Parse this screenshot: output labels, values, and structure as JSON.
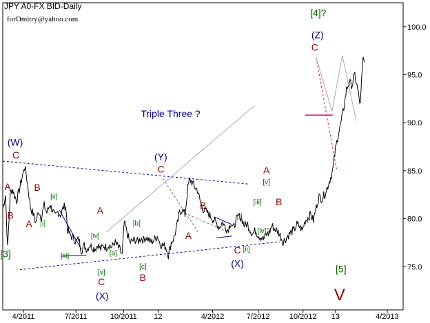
{
  "header": {
    "title": "JPY A0-FX BID-Daily",
    "email": "forDmitry@yahoo.com"
  },
  "chart_data": {
    "type": "line",
    "title": "JPY A0-FX BID-Daily",
    "xlabel": "",
    "ylabel": "",
    "grid": false,
    "legend": "none",
    "ylim": [
      70.5,
      102.5
    ],
    "y_ticks": [
      75.0,
      80.0,
      85.0,
      90.0,
      95.0,
      100.0
    ],
    "x_ticks": [
      "4/2011",
      "7/2011",
      "10/2011",
      "12",
      "4/2012",
      "7/2012",
      "10/2012",
      "13",
      "4/2013"
    ],
    "x_tick_t": [
      30,
      106,
      175,
      225,
      304,
      370,
      435,
      482,
      557
    ],
    "price": {
      "color": "#000000",
      "t": [
        0,
        4,
        7,
        9,
        11,
        14,
        17,
        20,
        24,
        28,
        32,
        36,
        40,
        44,
        48,
        52,
        56,
        60,
        64,
        68,
        72,
        76,
        80,
        84,
        88,
        91,
        94,
        98,
        102,
        106,
        110,
        114,
        118,
        122,
        126,
        130,
        134,
        138,
        142,
        146,
        150,
        154,
        158,
        162,
        166,
        170,
        173,
        176,
        180,
        184,
        188,
        192,
        196,
        200,
        204,
        208,
        212,
        216,
        220,
        224,
        228,
        232,
        236,
        240,
        244,
        248,
        252,
        256,
        260,
        264,
        268,
        271,
        274,
        278,
        282,
        286,
        290,
        294,
        298,
        302,
        306,
        310,
        314,
        318,
        322,
        326,
        330,
        334,
        338,
        342,
        346,
        350,
        354,
        358,
        362,
        366,
        370,
        374,
        378,
        382,
        386,
        390,
        394,
        398,
        402,
        406,
        410,
        414,
        418,
        422,
        426,
        430,
        434,
        438,
        442,
        446,
        450,
        454,
        458,
        462,
        466,
        470,
        474,
        478,
        482,
        486,
        490,
        494,
        498,
        502,
        506,
        510,
        514,
        518,
        520,
        522,
        524
      ],
      "y": [
        81.0,
        82.5,
        76.9,
        79.8,
        82.7,
        83.1,
        82.4,
        81.9,
        83.0,
        84.3,
        85.5,
        83.6,
        81.2,
        80.5,
        79.6,
        80.8,
        80.1,
        81.4,
        80.6,
        81.5,
        80.9,
        80.2,
        80.7,
        80.4,
        81.2,
        81.4,
        78.8,
        78.2,
        78.0,
        77.6,
        77.9,
        76.7,
        77.2,
        76.8,
        77.3,
        77.0,
        76.9,
        77.3,
        76.8,
        77.2,
        77.0,
        77.3,
        77.0,
        77.6,
        77.2,
        76.7,
        76.2,
        79.6,
        78.6,
        77.5,
        77.7,
        77.8,
        77.6,
        78.0,
        77.8,
        78.1,
        77.7,
        77.6,
        77.9,
        78.2,
        77.4,
        77.2,
        77.1,
        76.2,
        77.5,
        78.0,
        79.1,
        80.6,
        81.0,
        80.4,
        83.2,
        84.1,
        83.8,
        83.3,
        83.0,
        81.8,
        81.0,
        80.8,
        80.5,
        80.2,
        79.8,
        79.5,
        79.1,
        79.6,
        79.2,
        78.8,
        79.6,
        79.0,
        79.8,
        80.3,
        80.0,
        79.3,
        79.5,
        78.9,
        78.4,
        78.8,
        78.3,
        78.1,
        77.9,
        78.4,
        78.5,
        79.3,
        78.9,
        78.7,
        78.3,
        77.6,
        77.9,
        78.3,
        78.6,
        78.8,
        79.4,
        79.2,
        78.8,
        79.8,
        80.1,
        80.5,
        79.8,
        81.2,
        82.3,
        82.1,
        82.5,
        83.2,
        84.1,
        85.0,
        87.2,
        88.8,
        90.0,
        91.5,
        93.5,
        94.2,
        93.9,
        95.0,
        93.5,
        91.8,
        94.5,
        96.7,
        96.3
      ]
    },
    "annotations": {
      "main_text": "Triple Three ?",
      "waves": [
        {
          "text": "[3]",
          "t": 4,
          "y": 76.0,
          "color": "#006400"
        },
        {
          "text": "A",
          "t": 7,
          "y": 83.0,
          "color": "#8b0000"
        },
        {
          "text": "B",
          "t": 11,
          "y": 80.0,
          "color": "#8b0000"
        },
        {
          "text": "(W)",
          "t": 18,
          "y": 87.6,
          "color": "#000080"
        },
        {
          "text": "C",
          "t": 19,
          "y": 86.3,
          "color": "#8b0000"
        },
        {
          "text": "B",
          "t": 50,
          "y": 82.9,
          "color": "#8b0000"
        },
        {
          "text": "[ii]",
          "t": 74,
          "y": 82.1,
          "color": "#006400",
          "small": true
        },
        {
          "text": "[i]",
          "t": 58,
          "y": 79.3,
          "color": "#006400",
          "small": true
        },
        {
          "text": "A",
          "t": 38,
          "y": 79.1,
          "color": "#8b0000"
        },
        {
          "text": "[iii]",
          "t": 90,
          "y": 75.9,
          "color": "#006400",
          "small": true
        },
        {
          "text": "[iv]",
          "t": 134,
          "y": 78.0,
          "color": "#006400",
          "small": true
        },
        {
          "text": "A",
          "t": 141,
          "y": 80.5,
          "color": "#8b0000"
        },
        {
          "text": "[v]",
          "t": 143,
          "y": 74.2,
          "color": "#006400",
          "small": true
        },
        {
          "text": "C",
          "t": 143,
          "y": 73.1,
          "color": "#8b0000"
        },
        {
          "text": "(X)",
          "t": 144,
          "y": 71.6,
          "color": "#000080"
        },
        {
          "text": "[a]",
          "t": 160,
          "y": 76.2,
          "color": "#006400",
          "small": true
        },
        {
          "text": "[b]",
          "t": 194,
          "y": 79.3,
          "color": "#006400",
          "small": true
        },
        {
          "text": "[c]",
          "t": 203,
          "y": 74.8,
          "color": "#006400",
          "small": true
        },
        {
          "text": "B",
          "t": 203,
          "y": 73.5,
          "color": "#8b0000"
        },
        {
          "text": "(Y)",
          "t": 229,
          "y": 86.1,
          "color": "#000080"
        },
        {
          "text": "C",
          "t": 229,
          "y": 84.8,
          "color": "#8b0000"
        },
        {
          "text": "A",
          "t": 269,
          "y": 77.9,
          "color": "#8b0000"
        },
        {
          "text": "B",
          "t": 290,
          "y": 81.0,
          "color": "#8b0000"
        },
        {
          "text": "[i]",
          "t": 343,
          "y": 80.0,
          "color": "#006400",
          "small": true
        },
        {
          "text": "[iv]?",
          "t": 378,
          "y": 78.5,
          "color": "#006400",
          "small": true
        },
        {
          "text": "C",
          "t": 340,
          "y": 76.4,
          "color": "#8b0000"
        },
        {
          "text": "[ii]",
          "t": 353,
          "y": 76.6,
          "color": "#006400",
          "small": true
        },
        {
          "text": "(X)",
          "t": 340,
          "y": 75.0,
          "color": "#000080"
        },
        {
          "text": "[iii]",
          "t": 369,
          "y": 81.5,
          "color": "#006400",
          "small": true
        },
        {
          "text": "A",
          "t": 382,
          "y": 84.7,
          "color": "#8b0000"
        },
        {
          "text": "[v]",
          "t": 382,
          "y": 83.6,
          "color": "#006400",
          "small": true
        },
        {
          "text": "B",
          "t": 400,
          "y": 81.4,
          "color": "#8b0000"
        },
        {
          "text": "[4]?",
          "t": 457,
          "y": 101.1,
          "color": "#006400"
        },
        {
          "text": "(Z)",
          "t": 456,
          "y": 98.8,
          "color": "#000080"
        },
        {
          "text": "C",
          "t": 452,
          "y": 97.5,
          "color": "#8b0000"
        },
        {
          "text": "[5]",
          "t": 490,
          "y": 74.4,
          "color": "#006400"
        },
        {
          "text": "V",
          "t": 488,
          "y": 71.5,
          "color": "#8b0000",
          "big": true
        }
      ],
      "lines": [
        {
          "kind": "dashed",
          "color": "#00008b",
          "t": [
            0,
            358
          ],
          "y": [
            86.0,
            83.6
          ]
        },
        {
          "kind": "dashed",
          "color": "#00008b",
          "t": [
            25,
            401
          ],
          "y": [
            74.7,
            77.6
          ]
        },
        {
          "kind": "solid",
          "color": "#a9a9a9",
          "t": [
            150,
            365
          ],
          "y": [
            78.6,
            91.8
          ]
        },
        {
          "kind": "solid",
          "color": "#00008b",
          "t": [
            82,
            114
          ],
          "y": [
            80.9,
            76.8
          ]
        },
        {
          "kind": "solid",
          "color": "#00008b",
          "t": [
            84,
            121
          ],
          "y": [
            76.1,
            76.2
          ]
        },
        {
          "kind": "dashed",
          "color": "#696969",
          "t": [
            232,
            283
          ],
          "y": [
            84.2,
            78.6
          ]
        },
        {
          "kind": "dashed",
          "color": "#696969",
          "t": [
            263,
            320
          ],
          "y": [
            80.6,
            78.8
          ]
        },
        {
          "kind": "solid",
          "color": "#00008b",
          "t": [
            306,
            332
          ],
          "y": [
            80.2,
            79.4
          ]
        },
        {
          "kind": "solid",
          "color": "#00008b",
          "t": [
            309,
            332
          ],
          "y": [
            78.0,
            78.2
          ]
        },
        {
          "kind": "solid",
          "color": "#c71585",
          "t": [
            438,
            478
          ],
          "y": [
            90.8,
            90.8
          ]
        },
        {
          "kind": "dashed",
          "color": "#dc143c",
          "t": [
            454,
            484
          ],
          "y": [
            96.8,
            85.0
          ]
        },
        {
          "kind": "solid",
          "color": "#a9a9a9",
          "t": [
            454,
            477,
            492,
            512
          ],
          "y": [
            96.8,
            91.2,
            97.0,
            90.2
          ]
        }
      ]
    }
  }
}
